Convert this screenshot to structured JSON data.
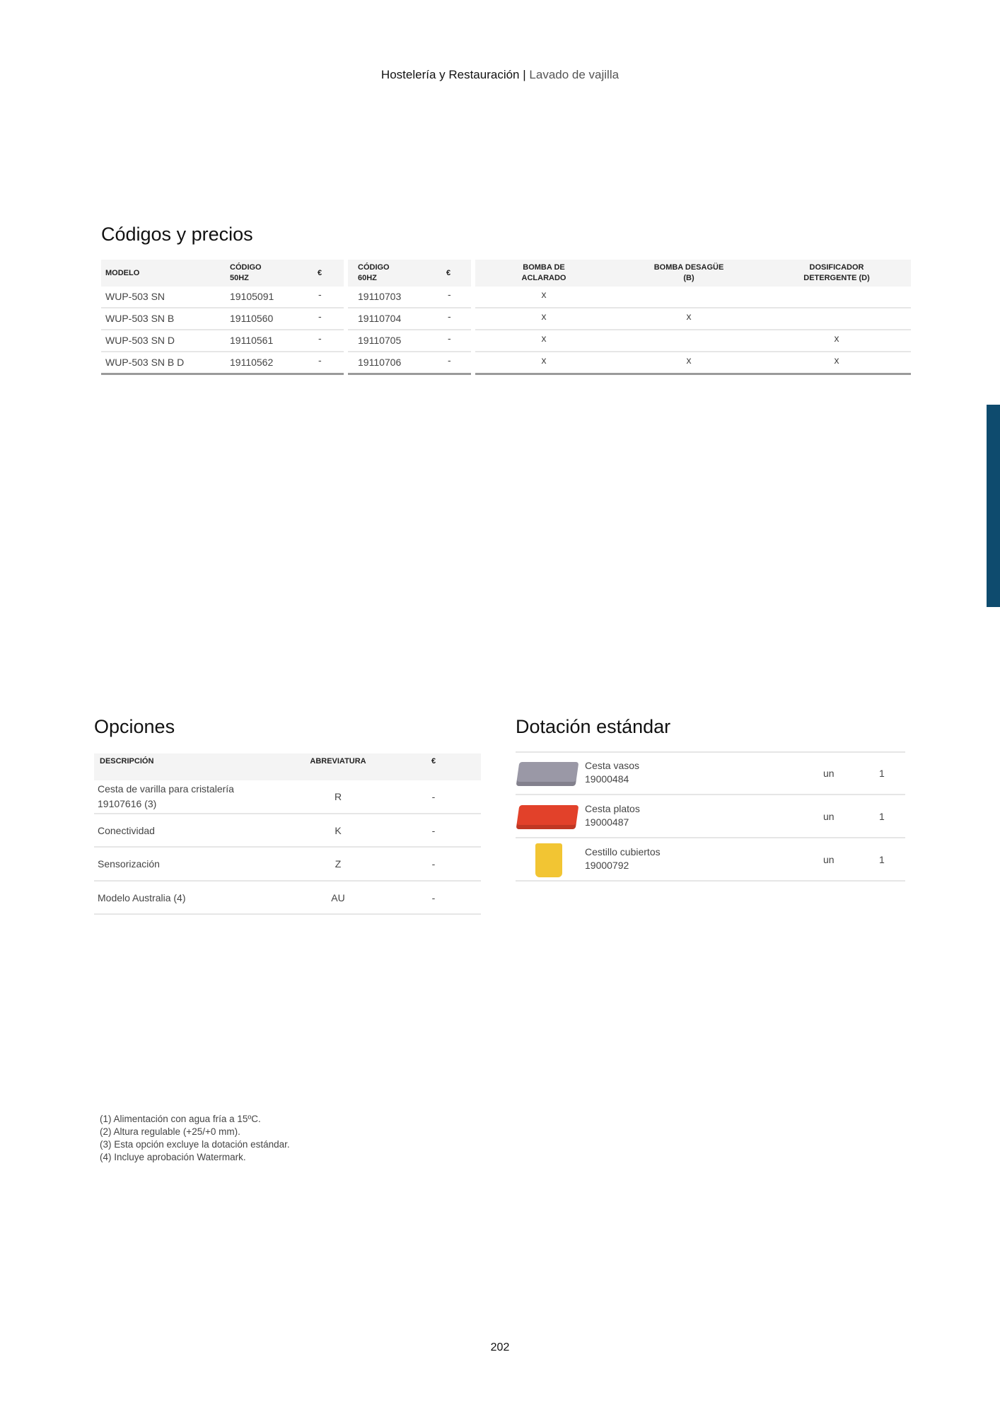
{
  "header": {
    "section": "Hostelería y Restauración",
    "separator": "|",
    "subsection": "Lavado de vajilla"
  },
  "codes": {
    "title": "Códigos y precios",
    "headers": {
      "model": "MODELO",
      "code50_1": "CÓDIGO",
      "code50_2": "50HZ",
      "eur1": "€",
      "code60_1": "CÓDIGO",
      "code60_2": "60HZ",
      "eur2": "€",
      "pump1_1": "BOMBA DE",
      "pump1_2": "ACLARADO",
      "pump2_1": "BOMBA DESAGÜE",
      "pump2_2": "(B)",
      "dos_1": "DOSIFICADOR",
      "dos_2": "DETERGENTE (D)"
    },
    "rows": [
      {
        "model": "WUP-503 SN",
        "code50": "19105091",
        "eur50": "-",
        "code60": "19110703",
        "eur60": "-",
        "rinse": "x",
        "drain": "",
        "detergent": ""
      },
      {
        "model": "WUP-503 SN B",
        "code50": "19110560",
        "eur50": "-",
        "code60": "19110704",
        "eur60": "-",
        "rinse": "x",
        "drain": "x",
        "detergent": ""
      },
      {
        "model": "WUP-503 SN D",
        "code50": "19110561",
        "eur50": "-",
        "code60": "19110705",
        "eur60": "-",
        "rinse": "x",
        "drain": "",
        "detergent": "x"
      },
      {
        "model": "WUP-503 SN B D",
        "code50": "19110562",
        "eur50": "-",
        "code60": "19110706",
        "eur60": "-",
        "rinse": "x",
        "drain": "x",
        "detergent": "x"
      }
    ]
  },
  "options": {
    "title": "Opciones",
    "headers": {
      "desc": "DESCRIPCIÓN",
      "abbr": "ABREVIATURA",
      "eur": "€"
    },
    "rows": [
      {
        "desc": "Cesta de varilla para cristalería",
        "desc2": "19107616 (3)",
        "abbr": "R",
        "eur": "-"
      },
      {
        "desc": "Conectividad",
        "desc2": "",
        "abbr": "K",
        "eur": "-"
      },
      {
        "desc": "Sensorización",
        "desc2": "",
        "abbr": "Z",
        "eur": "-"
      },
      {
        "desc": "Modelo Australia (4)",
        "desc2": "",
        "abbr": "AU",
        "eur": "-"
      }
    ]
  },
  "standard": {
    "title": "Dotación estándar",
    "rows": [
      {
        "name": "Cesta vasos",
        "code": "19000484",
        "unit": "un",
        "qty": "1",
        "icon": "glass-rack-icon",
        "color": "#9a98a6"
      },
      {
        "name": "Cesta platos",
        "code": "19000487",
        "unit": "un",
        "qty": "1",
        "icon": "plate-rack-icon",
        "color": "#e2412a"
      },
      {
        "name": "Cestillo cubiertos",
        "code": "19000792",
        "unit": "un",
        "qty": "1",
        "icon": "cutlery-basket-icon",
        "color": "#f2c533"
      }
    ]
  },
  "footnotes": [
    "(1) Alimentación con agua fría a 15ºC.",
    "(2) Altura regulable (+25/+0 mm).",
    "(3) Esta opción excluye la dotación estándar.",
    "(4) Incluye aprobación Watermark."
  ],
  "page_number": "202",
  "colors": {
    "side_tab": "#0e4b6e"
  }
}
